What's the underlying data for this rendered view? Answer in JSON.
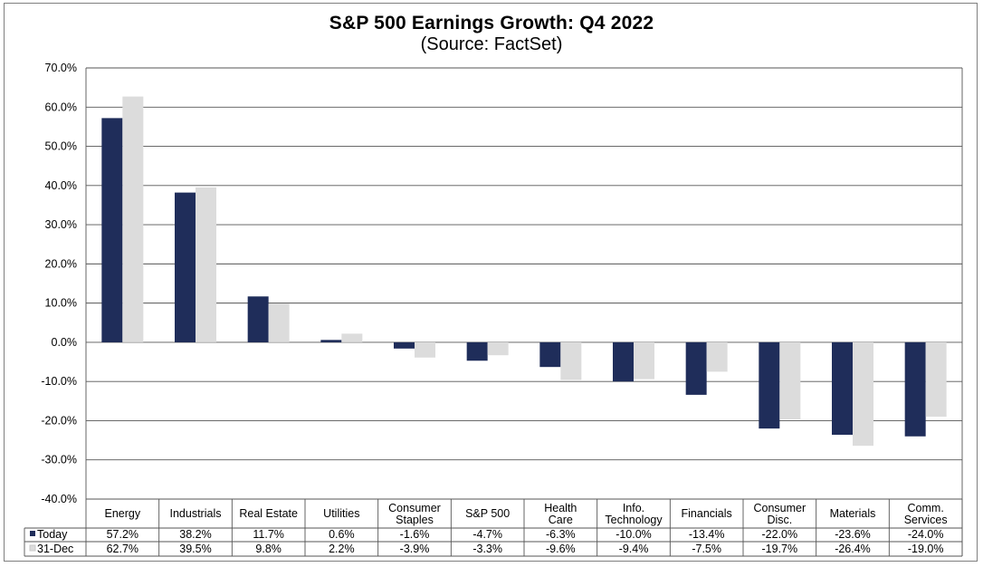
{
  "chart_data": {
    "type": "bar",
    "title": "S&P 500 Earnings Growth: Q4 2022",
    "subtitle": "(Source: FactSet)",
    "categories": [
      [
        "Energy"
      ],
      [
        "Industrials"
      ],
      [
        "Real Estate"
      ],
      [
        "Utilities"
      ],
      [
        "Consumer",
        "Staples"
      ],
      [
        "S&P 500"
      ],
      [
        "Health",
        "Care"
      ],
      [
        "Info.",
        "Technology"
      ],
      [
        "Financials"
      ],
      [
        "Consumer",
        "Disc."
      ],
      [
        "Materials"
      ],
      [
        "Comm.",
        "Services"
      ]
    ],
    "series": [
      {
        "name": "Today",
        "color": "#1f2d5a",
        "values": [
          57.2,
          38.2,
          11.7,
          0.6,
          -1.6,
          -4.7,
          -6.3,
          -10.0,
          -13.4,
          -22.0,
          -23.6,
          -24.0
        ],
        "labels": [
          "57.2%",
          "38.2%",
          "11.7%",
          "0.6%",
          "-1.6%",
          "-4.7%",
          "-6.3%",
          "-10.0%",
          "-13.4%",
          "-22.0%",
          "-23.6%",
          "-24.0%"
        ]
      },
      {
        "name": "31-Dec",
        "color": "#dcdcdc",
        "values": [
          62.7,
          39.5,
          9.8,
          2.2,
          -3.9,
          -3.3,
          -9.6,
          -9.4,
          -7.5,
          -19.7,
          -26.4,
          -19.0
        ],
        "labels": [
          "62.7%",
          "39.5%",
          "9.8%",
          "2.2%",
          "-3.9%",
          "-3.3%",
          "-9.6%",
          "-9.4%",
          "-7.5%",
          "-19.7%",
          "-26.4%",
          "-19.0%"
        ]
      }
    ],
    "ylim": [
      -40,
      70
    ],
    "yticks": [
      70,
      60,
      50,
      40,
      30,
      20,
      10,
      0,
      -10,
      -20,
      -30,
      -40
    ],
    "ytick_labels": [
      "70.0%",
      "60.0%",
      "50.0%",
      "40.0%",
      "30.0%",
      "20.0%",
      "10.0%",
      "0.0%",
      "-10.0%",
      "-20.0%",
      "-30.0%",
      "-40.0%"
    ],
    "grid": true,
    "legend_placement": "data-table"
  }
}
